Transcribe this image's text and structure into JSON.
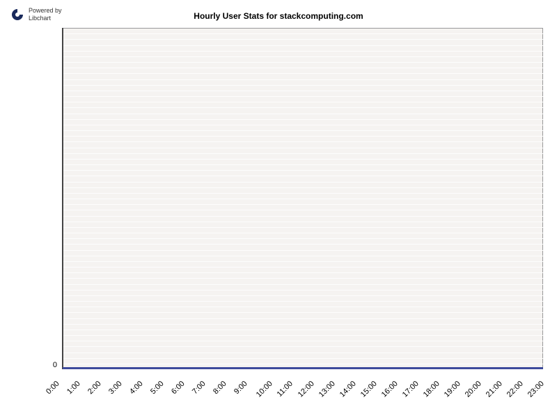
{
  "header": {
    "powered_by_line1": "Powered by",
    "powered_by_line2": "Libchart"
  },
  "chart": {
    "type": "bar",
    "title": "Hourly User Stats for stackcomputing.com",
    "title_fontsize": 12,
    "title_fontweight": "bold",
    "background_color": "#ffffff",
    "plot_background_color": "#f5f3f1",
    "plot_border_color": "#999999",
    "gridline_color": "#fdfdfd",
    "gridline_count": 60,
    "axis_line_color": "#444444",
    "baseline_color": "#3d4a9c",
    "label_fontsize": 11,
    "x_labels": [
      "0:00",
      "1:00",
      "2:00",
      "3:00",
      "4:00",
      "5:00",
      "6:00",
      "7:00",
      "8:00",
      "9:00",
      "10:00",
      "11:00",
      "12:00",
      "13:00",
      "14:00",
      "15:00",
      "16:00",
      "17:00",
      "18:00",
      "19:00",
      "20:00",
      "21:00",
      "22:00",
      "23:00"
    ],
    "x_label_rotation": -45,
    "y_ticks": [
      0
    ],
    "ylim": [
      0,
      1
    ],
    "values": [
      0,
      0,
      0,
      0,
      0,
      0,
      0,
      0,
      0,
      0,
      0,
      0,
      0,
      0,
      0,
      0,
      0,
      0,
      0,
      0,
      0,
      0,
      0,
      0
    ]
  }
}
